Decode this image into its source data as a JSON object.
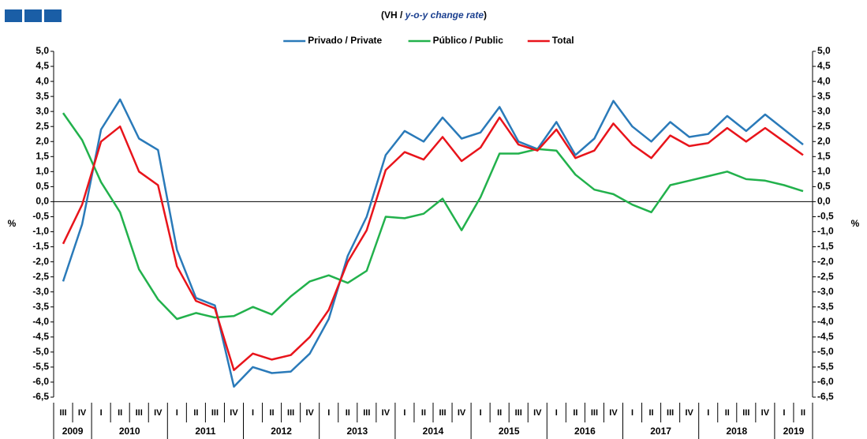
{
  "chart_data": {
    "type": "line",
    "title": [
      "(VH / ",
      "y-o-y change rate",
      ")"
    ],
    "y_label": "%",
    "categories": [
      "III",
      "IV",
      "I",
      "II",
      "III",
      "IV",
      "I",
      "II",
      "III",
      "IV",
      "I",
      "II",
      "III",
      "IV",
      "I",
      "II",
      "III",
      "IV",
      "I",
      "II",
      "III",
      "IV",
      "I",
      "II",
      "III",
      "IV",
      "I",
      "II",
      "III",
      "IV",
      "I",
      "II",
      "III",
      "IV",
      "I",
      "II",
      "III",
      "IV",
      "I",
      "II"
    ],
    "years": [
      "2009",
      "2010",
      "2011",
      "2012",
      "2013",
      "2014",
      "2015",
      "2016",
      "2017",
      "2018",
      "2019"
    ],
    "series": [
      {
        "name": "Privado / Private",
        "color": "#2a7ab9",
        "values": [
          -2.65,
          -0.75,
          2.4,
          3.4,
          2.1,
          1.72,
          -1.6,
          -3.2,
          -3.45,
          -6.15,
          -5.5,
          -5.7,
          -5.65,
          -5.05,
          -3.9,
          -1.8,
          -0.5,
          1.55,
          2.35,
          2.0,
          2.8,
          2.1,
          2.3,
          3.15,
          2.0,
          1.75,
          2.65,
          1.55,
          2.1,
          3.35,
          2.5,
          2.0,
          2.65,
          2.15,
          2.25,
          2.85,
          2.35,
          2.9,
          2.4,
          1.9
        ]
      },
      {
        "name": "Público / Public",
        "color": "#22b14c",
        "values": [
          2.95,
          2.05,
          0.65,
          -0.35,
          -2.25,
          -3.25,
          -3.9,
          -3.7,
          -3.85,
          -3.8,
          -3.5,
          -3.75,
          -3.15,
          -2.65,
          -2.45,
          -2.7,
          -2.3,
          -0.5,
          -0.55,
          -0.4,
          0.1,
          -0.95,
          0.15,
          1.6,
          1.6,
          1.75,
          1.7,
          0.9,
          0.4,
          0.25,
          -0.1,
          -0.35,
          0.55,
          0.7,
          0.85,
          1.0,
          0.75,
          0.7,
          0.55,
          0.35
        ]
      },
      {
        "name": "Total",
        "color": "#e8141b",
        "values": [
          -1.4,
          -0.1,
          2.0,
          2.5,
          1.0,
          0.55,
          -2.15,
          -3.3,
          -3.55,
          -5.6,
          -5.05,
          -5.25,
          -5.1,
          -4.5,
          -3.6,
          -2.0,
          -0.95,
          1.05,
          1.65,
          1.4,
          2.15,
          1.35,
          1.8,
          2.8,
          1.9,
          1.7,
          2.4,
          1.45,
          1.7,
          2.6,
          1.9,
          1.45,
          2.2,
          1.85,
          1.95,
          2.45,
          2.0,
          2.45,
          2.0,
          1.55
        ]
      }
    ],
    "ylim": [
      -6.5,
      5.0
    ],
    "yticks": [
      {
        "value": 5.0,
        "label": "5,0"
      },
      {
        "value": 4.5,
        "label": "4,5"
      },
      {
        "value": 4.0,
        "label": "4,0"
      },
      {
        "value": 3.5,
        "label": "3,5"
      },
      {
        "value": 3.0,
        "label": "3,0"
      },
      {
        "value": 2.5,
        "label": "2,5"
      },
      {
        "value": 2.0,
        "label": "2,0"
      },
      {
        "value": 1.5,
        "label": "1,5"
      },
      {
        "value": 1.0,
        "label": "1,0"
      },
      {
        "value": 0.5,
        "label": "0,5"
      },
      {
        "value": 0.0,
        "label": "0,0"
      },
      {
        "value": -0.5,
        "label": "-0,5"
      },
      {
        "value": -1.0,
        "label": "-1,0"
      },
      {
        "value": -1.5,
        "label": "-1,5"
      },
      {
        "value": -2.0,
        "label": "-2,0"
      },
      {
        "value": -2.5,
        "label": "-2,5"
      },
      {
        "value": -3.0,
        "label": "-3,0"
      },
      {
        "value": -3.5,
        "label": "-3,5"
      },
      {
        "value": -4.0,
        "label": "-4,0"
      },
      {
        "value": -4.5,
        "label": "-4,5"
      },
      {
        "value": -5.0,
        "label": "-5,0"
      },
      {
        "value": -5.5,
        "label": "-5,5"
      },
      {
        "value": -6.0,
        "label": "-6,0"
      },
      {
        "value": -6.5,
        "label": "-6,5"
      }
    ],
    "legend": "top"
  }
}
